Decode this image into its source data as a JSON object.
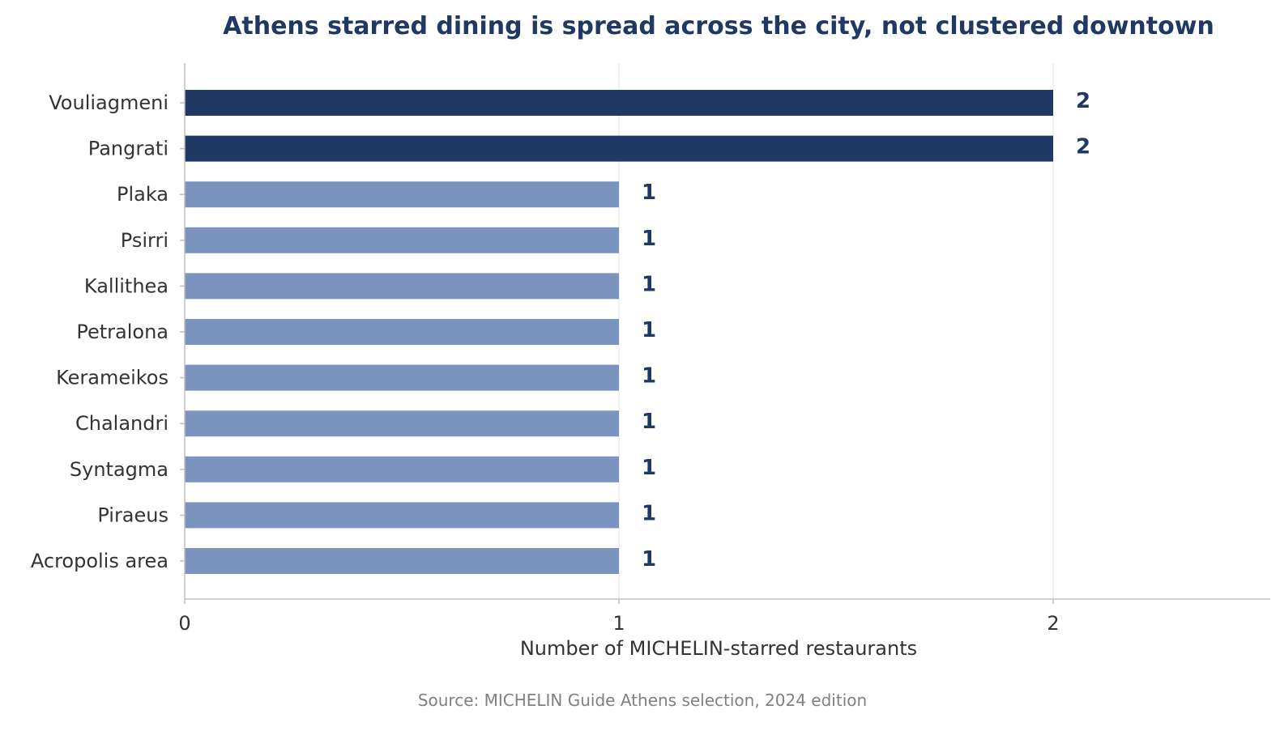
{
  "chart_data": {
    "type": "bar",
    "orientation": "horizontal",
    "title": "Athens starred dining is spread across the city, not clustered downtown",
    "xlabel": "Number of MICHELIN-starred restaurants",
    "ylabel": "",
    "source": "Source: MICHELIN Guide Athens selection, 2024 edition",
    "categories": [
      "Vouliagmeni",
      "Pangrati",
      "Plaka",
      "Psirri",
      "Kallithea",
      "Petralona",
      "Kerameikos",
      "Chalandri",
      "Syntagma",
      "Piraeus",
      "Acropolis area"
    ],
    "values": [
      2,
      2,
      1,
      1,
      1,
      1,
      1,
      1,
      1,
      1,
      1
    ],
    "data_labels": [
      "2",
      "2",
      "1",
      "1",
      "1",
      "1",
      "1",
      "1",
      "1",
      "1",
      "1"
    ],
    "xlim": [
      0,
      2.5
    ],
    "xticks": [
      0,
      1,
      2
    ],
    "xtick_labels": [
      "0",
      "1",
      "2"
    ],
    "grid": "vertical",
    "legend": "none",
    "colors": {
      "highlight": "#203864",
      "default": "#7b94bf",
      "title": "#203864",
      "data_label": "#203864",
      "grid": "#ebebeb",
      "axis": "#bfbfbf"
    }
  }
}
